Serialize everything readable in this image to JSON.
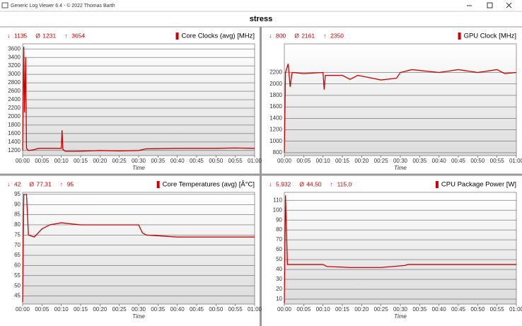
{
  "window_title": "Generic Log Viewer 6.4 - © 2022 Thomas Barth",
  "page_title": "stress",
  "chart_data": [
    {
      "type": "line",
      "stats": [
        {
          "icon": "↓",
          "value": 1135
        },
        {
          "icon": "Ø",
          "value": 1231
        },
        {
          "icon": "↑",
          "value": 3654
        }
      ],
      "x_label": "Time",
      "x": [
        0,
        0.3,
        0.5,
        0.8,
        1,
        1.5,
        3,
        4,
        10,
        10.2,
        10.4,
        11,
        14,
        20,
        25,
        30,
        32,
        40,
        50,
        55,
        60
      ],
      "series": [
        {
          "name": "Core Clocks (avg) [MHz]",
          "color": "#cc0000",
          "values": [
            1200,
            3654,
            2100,
            3400,
            1250,
            1200,
            1220,
            1250,
            1250,
            1680,
            1230,
            1180,
            1180,
            1200,
            1190,
            1200,
            1240,
            1250,
            1250,
            1260,
            1250
          ]
        }
      ],
      "xlim": [
        0,
        60
      ],
      "xticks": [
        {
          "value": 0,
          "label": "00:00"
        },
        {
          "value": 5,
          "label": "00:05"
        },
        {
          "value": 10,
          "label": "00:10"
        },
        {
          "value": 15,
          "label": "00:15"
        },
        {
          "value": 20,
          "label": "00:20"
        },
        {
          "value": 25,
          "label": "00:25"
        },
        {
          "value": 30,
          "label": "00:30"
        },
        {
          "value": 35,
          "label": "00:35"
        },
        {
          "value": 40,
          "label": "00:40"
        },
        {
          "value": 45,
          "label": "00:45"
        },
        {
          "value": 50,
          "label": "00:50"
        },
        {
          "value": 55,
          "label": "00:55"
        },
        {
          "value": 60,
          "label": "01:00"
        }
      ],
      "ylim": [
        1080,
        3720
      ],
      "yticks": [
        1200,
        1400,
        1600,
        1800,
        2000,
        2200,
        2400,
        2600,
        2800,
        3000,
        3200,
        3400,
        3600
      ],
      "grid": true
    },
    {
      "type": "line",
      "stats": [
        {
          "icon": "↓",
          "value": 800
        },
        {
          "icon": "Ø",
          "value": 2161
        },
        {
          "icon": "↑",
          "value": 2350
        }
      ],
      "x_label": "Time",
      "x": [
        0,
        0.3,
        1,
        1.5,
        2,
        5,
        10,
        10.3,
        10.6,
        15,
        17,
        19,
        25,
        29,
        30,
        33,
        40,
        45,
        50,
        55,
        57,
        60
      ],
      "series": [
        {
          "name": "GPU Clock [MHz]",
          "color": "#cc0000",
          "values": [
            800,
            2200,
            2350,
            1950,
            2200,
            2180,
            2200,
            1900,
            2150,
            2150,
            2080,
            2150,
            2070,
            2100,
            2200,
            2250,
            2200,
            2250,
            2200,
            2250,
            2180,
            2200
          ]
        }
      ],
      "xlim": [
        0,
        60
      ],
      "xticks": [
        {
          "value": 0,
          "label": "00:00"
        },
        {
          "value": 5,
          "label": "00:05"
        },
        {
          "value": 10,
          "label": "00:10"
        },
        {
          "value": 15,
          "label": "00:15"
        },
        {
          "value": 20,
          "label": "00:20"
        },
        {
          "value": 25,
          "label": "00:25"
        },
        {
          "value": 30,
          "label": "00:30"
        },
        {
          "value": 35,
          "label": "00:35"
        },
        {
          "value": 40,
          "label": "00:40"
        },
        {
          "value": 45,
          "label": "00:45"
        },
        {
          "value": 50,
          "label": "00:50"
        },
        {
          "value": 55,
          "label": "00:55"
        },
        {
          "value": 60,
          "label": "01:00"
        }
      ],
      "ylim": [
        750,
        2700
      ],
      "yticks": [
        800,
        1000,
        1200,
        1400,
        1600,
        1800,
        2000,
        2200
      ],
      "grid": true
    },
    {
      "type": "line",
      "stats": [
        {
          "icon": "↓",
          "value": 42
        },
        {
          "icon": "Ø",
          "value": {
            "value": 77.31,
            "label": "77,31"
          }
        },
        {
          "icon": "↑",
          "value": 95
        }
      ],
      "x_label": "Time",
      "x": [
        0,
        0.3,
        1,
        1.5,
        3,
        5,
        7,
        10,
        15,
        25,
        30,
        31,
        32,
        40,
        50,
        60
      ],
      "series": [
        {
          "name": "Core Temperatures (avg) [Â°C]",
          "color": "#cc0000",
          "values": [
            42,
            95,
            95,
            75,
            74,
            78,
            80,
            81,
            80,
            80,
            80,
            76,
            75,
            74,
            74,
            74
          ]
        }
      ],
      "xlim": [
        0,
        60
      ],
      "xticks": [
        {
          "value": 0,
          "label": "00:00"
        },
        {
          "value": 5,
          "label": "00:05"
        },
        {
          "value": 10,
          "label": "00:10"
        },
        {
          "value": 15,
          "label": "00:15"
        },
        {
          "value": 20,
          "label": "00:20"
        },
        {
          "value": 25,
          "label": "00:25"
        },
        {
          "value": 30,
          "label": "00:30"
        },
        {
          "value": 35,
          "label": "00:35"
        },
        {
          "value": 40,
          "label": "00:40"
        },
        {
          "value": 45,
          "label": "00:45"
        },
        {
          "value": 50,
          "label": "00:50"
        },
        {
          "value": 55,
          "label": "00:55"
        },
        {
          "value": 60,
          "label": "01:00"
        }
      ],
      "ylim": [
        41,
        96
      ],
      "yticks": [
        45,
        50,
        55,
        60,
        65,
        70,
        75,
        80,
        85,
        90,
        95
      ],
      "grid": true
    },
    {
      "type": "line",
      "stats": [
        {
          "icon": "↓",
          "value": {
            "value": 5.932,
            "label": "5,932"
          }
        },
        {
          "icon": "Ø",
          "value": {
            "value": 44.5,
            "label": "44,50"
          }
        },
        {
          "icon": "↑",
          "value": {
            "value": 115,
            "label": "115,0"
          }
        }
      ],
      "x_label": "Time",
      "x": [
        0,
        0.3,
        0.8,
        10,
        11,
        17,
        25,
        31,
        32,
        60
      ],
      "series": [
        {
          "name": "CPU Package Power [W]",
          "color": "#cc0000",
          "values": [
            5.932,
            115,
            45,
            45,
            43,
            42,
            42,
            44,
            45,
            45
          ]
        }
      ],
      "xlim": [
        0,
        60
      ],
      "xticks": [
        {
          "value": 0,
          "label": "00:00"
        },
        {
          "value": 5,
          "label": "00:05"
        },
        {
          "value": 10,
          "label": "00:10"
        },
        {
          "value": 15,
          "label": "00:15"
        },
        {
          "value": 20,
          "label": "00:20"
        },
        {
          "value": 25,
          "label": "00:25"
        },
        {
          "value": 30,
          "label": "00:30"
        },
        {
          "value": 35,
          "label": "00:35"
        },
        {
          "value": 40,
          "label": "00:40"
        },
        {
          "value": 45,
          "label": "00:45"
        },
        {
          "value": 50,
          "label": "00:50"
        },
        {
          "value": 55,
          "label": "00:55"
        },
        {
          "value": 60,
          "label": "01:00"
        }
      ],
      "ylim": [
        5,
        118
      ],
      "yticks": [
        10,
        20,
        30,
        40,
        50,
        60,
        70,
        80,
        90,
        100,
        110
      ],
      "grid": true
    }
  ]
}
